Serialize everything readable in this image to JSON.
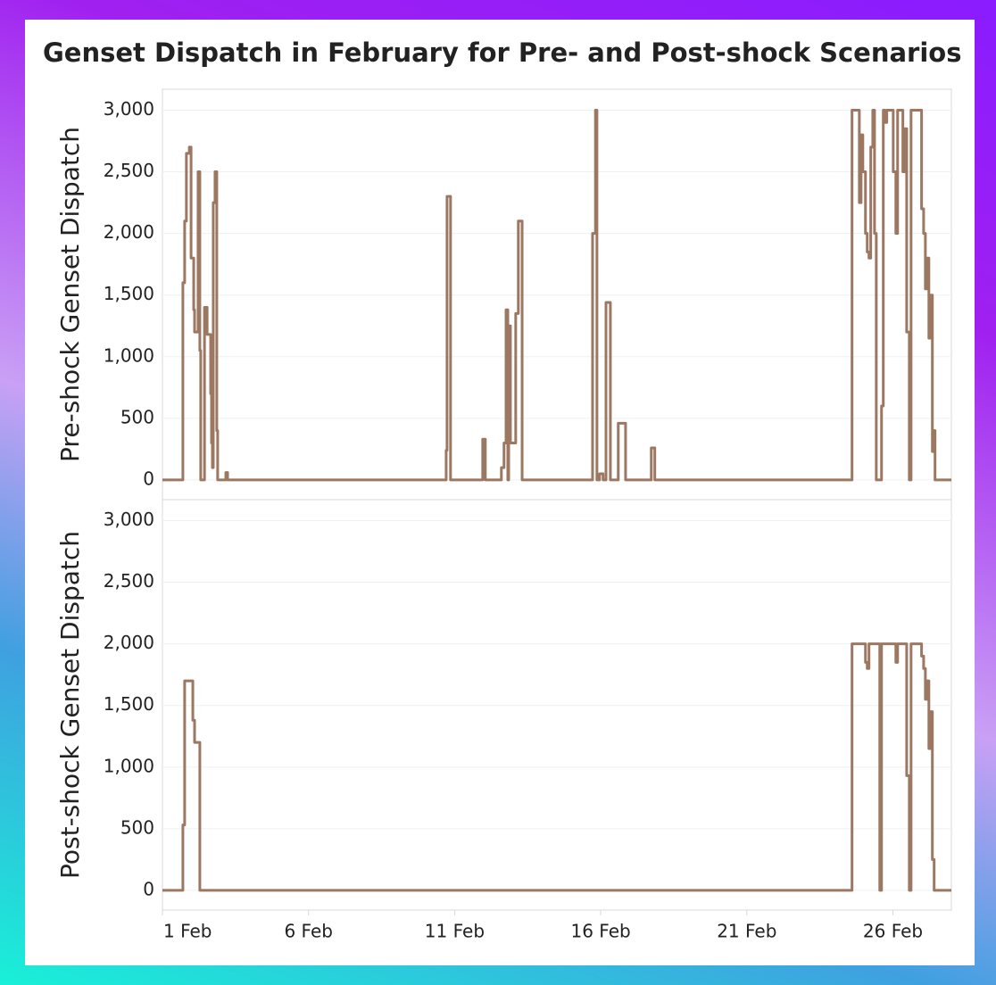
{
  "title": "Genset Dispatch in February for Pre- and Post-shock Scenarios",
  "chart_data": [
    {
      "type": "line",
      "step": true,
      "grid": true,
      "ylabel": "Pre-shock Genset Dispatch",
      "xlim": [
        1,
        28
      ],
      "ylim": [
        -160,
        3170
      ],
      "yticks": [
        0,
        500,
        {
          "value": 1000,
          "label": "1,000"
        },
        {
          "value": 1500,
          "label": "1,500"
        },
        {
          "value": 2000,
          "label": "2,000"
        },
        {
          "value": 2500,
          "label": "2,500"
        },
        {
          "value": 3000,
          "label": "3,000"
        }
      ],
      "x": [
        1,
        1.7,
        1.76,
        1.82,
        1.92,
        1.98,
        2.07,
        2.1,
        2.22,
        2.28,
        2.31,
        2.44,
        2.53,
        2.65,
        2.68,
        2.71,
        2.74,
        2.8,
        2.86,
        2.89,
        3.17,
        3.23,
        10.71,
        10.74,
        10.86,
        11.96,
        12.05,
        12.6,
        12.69,
        12.76,
        12.82,
        12.85,
        12.91,
        13.09,
        13.18,
        13.31,
        15.72,
        15.82,
        15.87,
        15.96,
        16.08,
        16.18,
        16.33,
        16.6,
        16.85,
        17.73,
        17.85,
        24.6,
        24.85,
        24.91,
        24.97,
        25.06,
        25.12,
        25.18,
        25.24,
        25.31,
        25.37,
        25.43,
        25.61,
        25.67,
        25.73,
        25.79,
        26.01,
        26.1,
        26.16,
        26.34,
        26.4,
        26.47,
        26.56,
        26.62,
        26.98,
        27.05,
        27.11,
        27.17,
        27.23,
        27.29,
        27.35,
        27.41,
        27.44,
        28
      ],
      "series": [
        {
          "color": "#9c7863",
          "values": [
            0,
            1600,
            2100,
            2650,
            2700,
            1800,
            1380,
            1200,
            2500,
            1050,
            0,
            1400,
            1180,
            700,
            300,
            100,
            2250,
            2500,
            400,
            0,
            60,
            0,
            240,
            2300,
            0,
            330,
            0,
            100,
            300,
            1380,
            0,
            1250,
            300,
            1350,
            2100,
            0,
            2000,
            3000,
            0,
            50,
            0,
            1440,
            0,
            460,
            0,
            260,
            0,
            3000,
            2250,
            2800,
            2500,
            2000,
            1850,
            1800,
            2700,
            3000,
            2000,
            0,
            600,
            3000,
            2900,
            3000,
            2500,
            2000,
            3000,
            2500,
            2850,
            1200,
            0,
            3000,
            2200,
            2000,
            1550,
            1800,
            1150,
            1500,
            230,
            400,
            0,
            0
          ]
        }
      ]
    },
    {
      "type": "line",
      "step": true,
      "grid": true,
      "ylabel": "Post-shock Genset Dispatch",
      "xlim": [
        1,
        28
      ],
      "ylim": [
        -160,
        3170
      ],
      "yticks": [
        0,
        500,
        {
          "value": 1000,
          "label": "1,000"
        },
        {
          "value": 1500,
          "label": "1,500"
        },
        {
          "value": 2000,
          "label": "2,000"
        },
        {
          "value": 2500,
          "label": "2,500"
        },
        {
          "value": 3000,
          "label": "3,000"
        }
      ],
      "xticks": [
        {
          "value": 1,
          "label": "1 Feb"
        },
        {
          "value": 6,
          "label": "6 Feb"
        },
        {
          "value": 11,
          "label": "11 Feb"
        },
        {
          "value": 16,
          "label": "16 Feb"
        },
        {
          "value": 21,
          "label": "21 Feb"
        },
        {
          "value": 26,
          "label": "26 Feb"
        }
      ],
      "x": [
        1,
        1.7,
        1.76,
        2.04,
        2.1,
        2.28,
        24.6,
        25.06,
        25.12,
        25.18,
        25.55,
        25.61,
        26.1,
        26.16,
        26.47,
        26.56,
        26.62,
        26.98,
        27.05,
        27.11,
        27.17,
        27.23,
        27.29,
        27.35,
        27.41,
        28
      ],
      "series": [
        {
          "color": "#9c7863",
          "values": [
            0,
            530,
            1700,
            1380,
            1200,
            0,
            2000,
            1850,
            1800,
            2000,
            0,
            2000,
            1850,
            2000,
            930,
            0,
            2000,
            1900,
            1800,
            1550,
            1700,
            1150,
            1450,
            250,
            0,
            0
          ]
        }
      ]
    }
  ]
}
